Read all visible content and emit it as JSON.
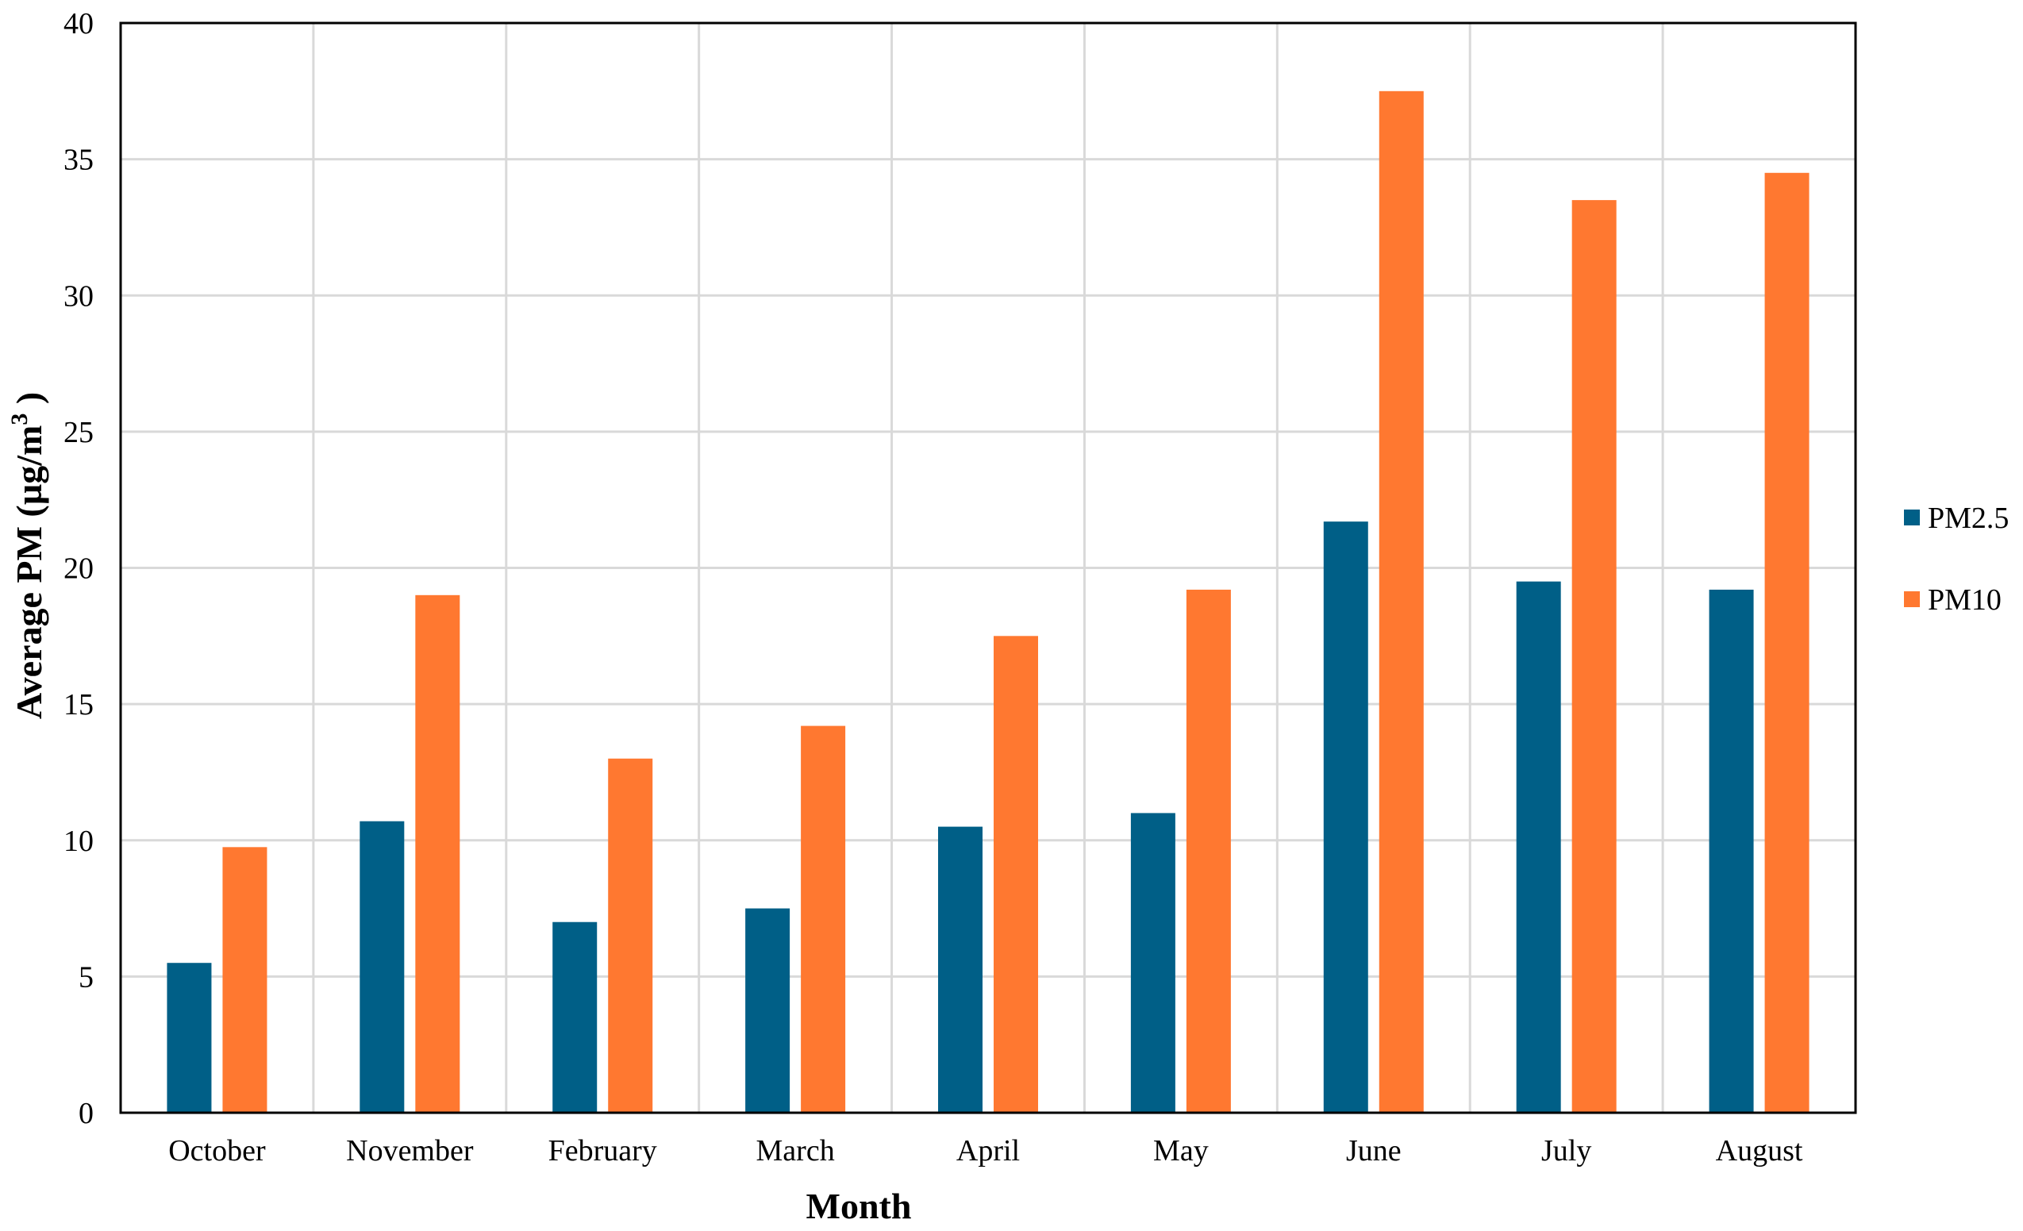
{
  "chart_data": {
    "type": "bar",
    "categories": [
      "October",
      "November",
      "February",
      "March",
      "April",
      "May",
      "June",
      "July",
      "August"
    ],
    "series": [
      {
        "name": "PM2.5",
        "color": "#005f87",
        "values": [
          5.5,
          10.7,
          7.0,
          7.5,
          10.5,
          11.0,
          21.7,
          19.5,
          19.2
        ]
      },
      {
        "name": "PM10",
        "color": "#ff7830",
        "values": [
          9.75,
          19.0,
          13.0,
          14.2,
          17.5,
          19.2,
          37.5,
          33.5,
          34.5
        ]
      }
    ],
    "xlabel": "Month",
    "ylabel_main": "Average PM (µg/m",
    "ylabel_sup": "3",
    "ylabel_end": " )",
    "ylim": [
      0,
      40
    ],
    "yticks": [
      0,
      5,
      10,
      15,
      20,
      25,
      30,
      35,
      40
    ],
    "grid": true,
    "legend_position": "right"
  }
}
